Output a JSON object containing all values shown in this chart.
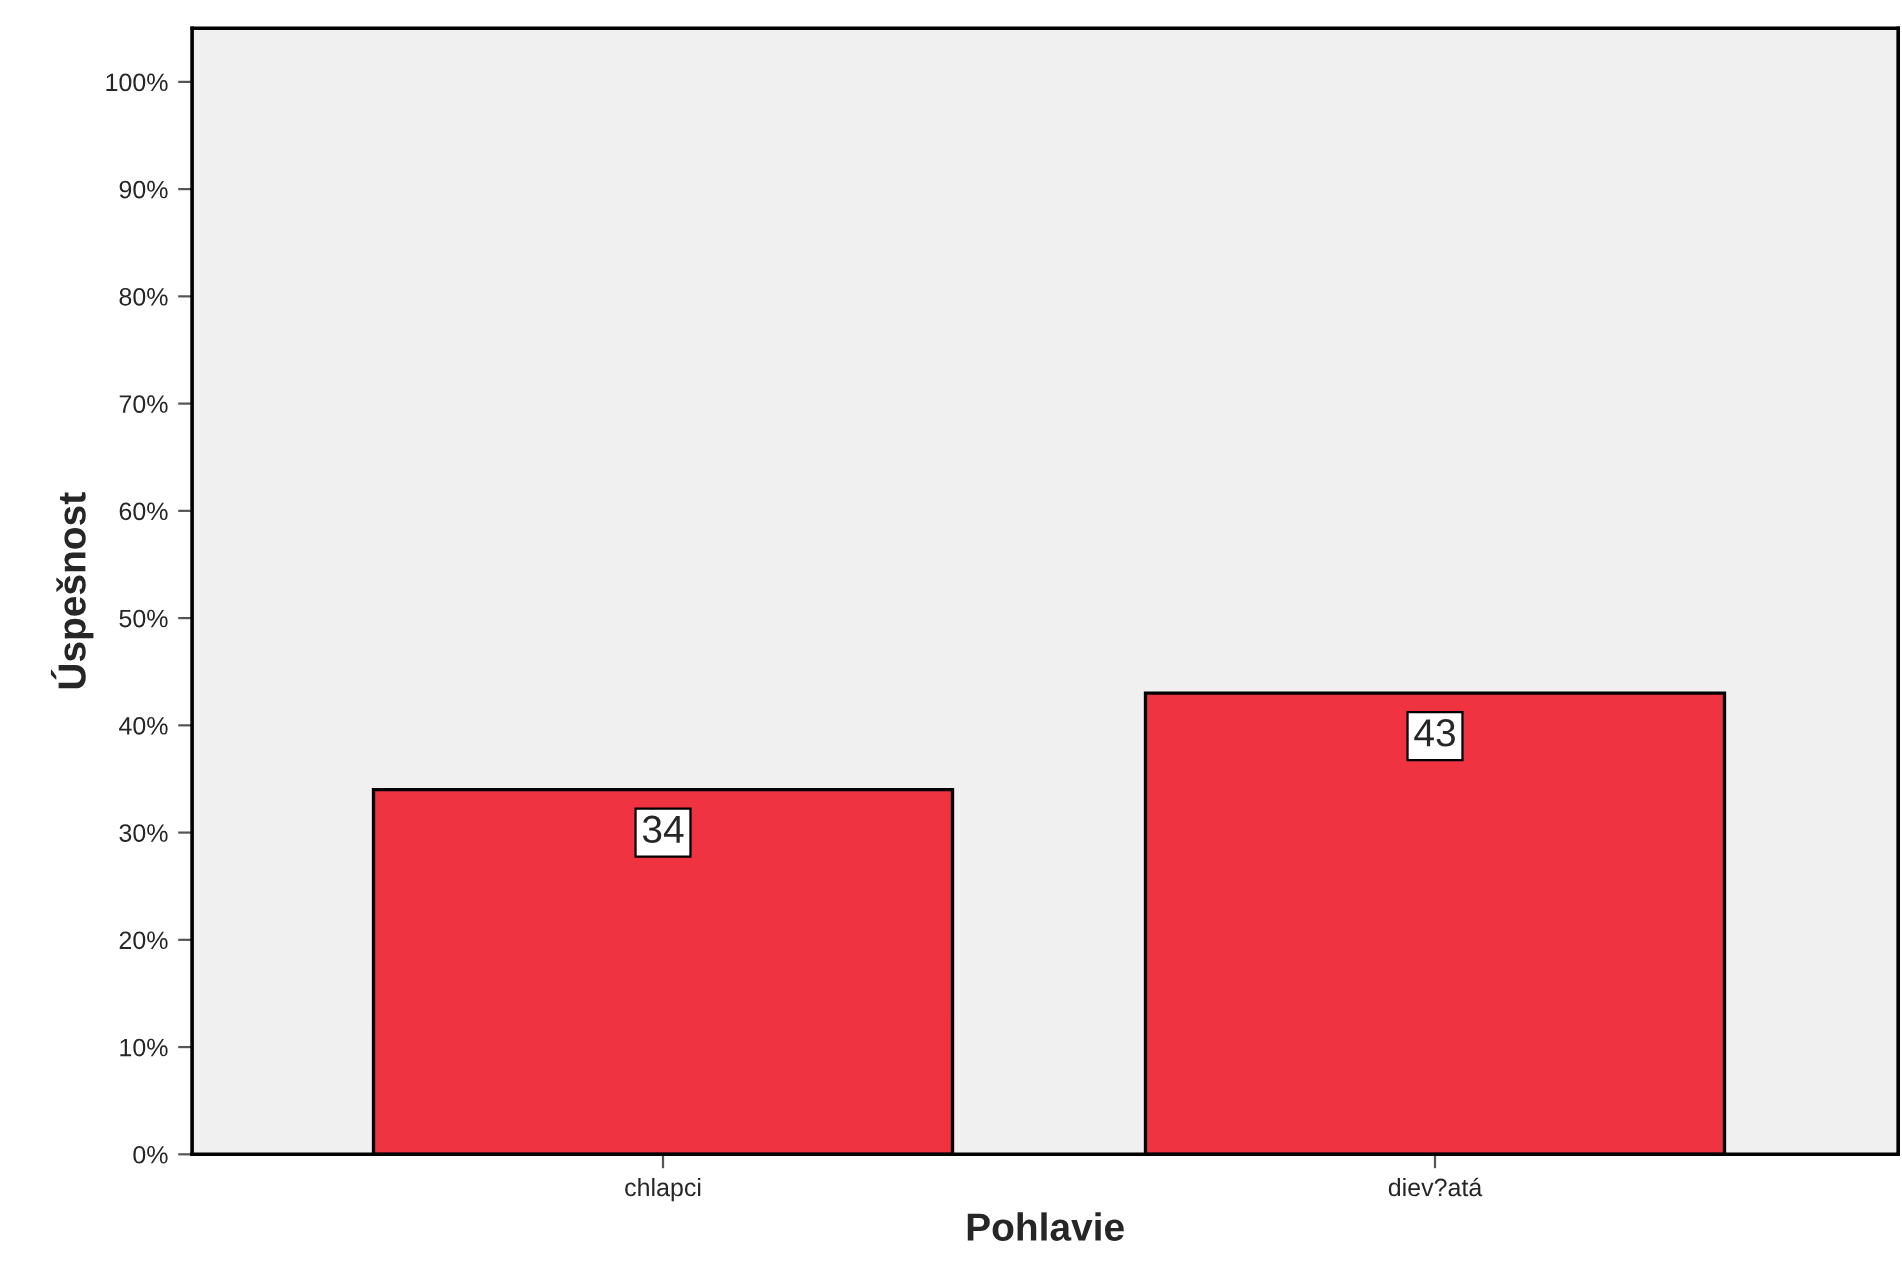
{
  "chart_data": {
    "type": "bar",
    "xlabel": "Pohlavie",
    "ylabel": "Úspešnost",
    "categories": [
      "chlapci",
      "diev?atá"
    ],
    "values": [
      34,
      43
    ],
    "color": "#ef3340",
    "ylim": [
      0,
      105
    ],
    "yticks": [
      {
        "value": 0,
        "label": "0%"
      },
      {
        "value": 10,
        "label": "10%"
      },
      {
        "value": 20,
        "label": "20%"
      },
      {
        "value": 30,
        "label": "30%"
      },
      {
        "value": 40,
        "label": "40%"
      },
      {
        "value": 50,
        "label": "50%"
      },
      {
        "value": 60,
        "label": "60%"
      },
      {
        "value": 70,
        "label": "70%"
      },
      {
        "value": 80,
        "label": "80%"
      },
      {
        "value": 90,
        "label": "90%"
      },
      {
        "value": 100,
        "label": "100%"
      }
    ],
    "data_labels": true,
    "grid": false,
    "legend": false
  }
}
